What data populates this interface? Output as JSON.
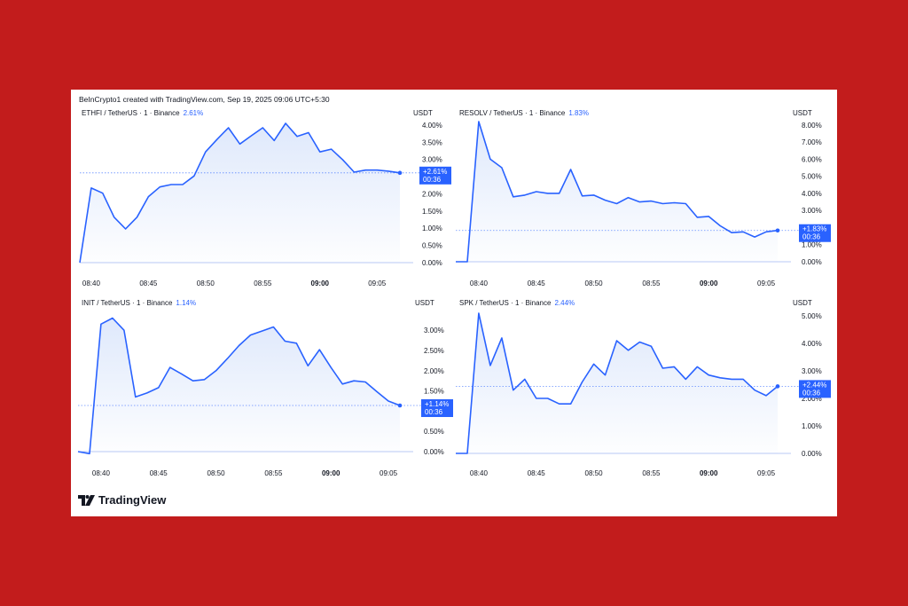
{
  "credit": "BeInCrypto1 created with TradingView.com, Sep 19, 2025 09:06 UTC+5:30",
  "brand": "TradingView",
  "colors": {
    "line": "#2962ff",
    "fill": "#dbe6fb",
    "background": "#c21c1c",
    "axis": "#131722"
  },
  "chart_data": [
    {
      "type": "area",
      "symbol": "ETHFI / TetherUS · 1 · Binance",
      "change": "2.61%",
      "unit": "USDT",
      "badge_value": "+2.61%",
      "badge_time": "00:36",
      "x_ticks": [
        "08:40",
        "08:45",
        "08:50",
        "08:55",
        "09:00",
        "09:05"
      ],
      "x_tick_index": [
        1,
        6,
        11,
        16,
        21,
        26
      ],
      "bold_tick": "09:00",
      "y_ticks": [
        "0.00%",
        "0.50%",
        "1.00%",
        "1.50%",
        "2.00%",
        "2.50%",
        "3.00%",
        "3.50%",
        "4.00%"
      ],
      "ylim": [
        0,
        4.05
      ],
      "x": [
        0,
        1,
        2,
        3,
        4,
        5,
        6,
        7,
        8,
        9,
        10,
        11,
        12,
        13,
        14,
        15,
        16,
        17,
        18,
        19,
        20,
        21,
        22,
        23,
        24,
        25,
        26,
        27,
        28
      ],
      "values": [
        0.0,
        2.17,
        2.02,
        1.32,
        0.98,
        1.32,
        1.92,
        2.2,
        2.27,
        2.27,
        2.52,
        3.22,
        3.58,
        3.92,
        3.45,
        3.69,
        3.92,
        3.55,
        4.05,
        3.67,
        3.78,
        3.22,
        3.3,
        2.99,
        2.63,
        2.69,
        2.69,
        2.66,
        2.61
      ]
    },
    {
      "type": "area",
      "symbol": "RESOLV / TetherUS · 1 · Binance",
      "change": "1.83%",
      "unit": "USDT",
      "badge_value": "+1.83%",
      "badge_time": "00:36",
      "x_ticks": [
        "08:40",
        "08:45",
        "08:50",
        "08:55",
        "09:00",
        "09:05"
      ],
      "x_tick_index": [
        2,
        7,
        12,
        17,
        22,
        27
      ],
      "bold_tick": "09:00",
      "y_ticks": [
        "0.00%",
        "1.00%",
        "2.00%",
        "3.00%",
        "4.00%",
        "5.00%",
        "6.00%",
        "7.00%",
        "8.00%"
      ],
      "ylim": [
        0,
        8.2
      ],
      "x": [
        0,
        1,
        2,
        3,
        4,
        5,
        6,
        7,
        8,
        9,
        10,
        11,
        12,
        13,
        14,
        15,
        16,
        17,
        18,
        19,
        20,
        21,
        22,
        23,
        24,
        25,
        26,
        27,
        28
      ],
      "values": [
        0.0,
        0.0,
        8.2,
        6.0,
        5.5,
        3.8,
        3.9,
        4.1,
        4.0,
        4.0,
        5.4,
        3.85,
        3.9,
        3.6,
        3.4,
        3.75,
        3.5,
        3.55,
        3.4,
        3.45,
        3.4,
        2.6,
        2.65,
        2.1,
        1.7,
        1.75,
        1.45,
        1.75,
        1.83
      ]
    },
    {
      "type": "area",
      "symbol": "INIT / TetherUS · 1 · Binance",
      "change": "1.14%",
      "unit": "USDT",
      "badge_value": "+1.14%",
      "badge_time": "00:36",
      "x_ticks": [
        "08:40",
        "08:45",
        "08:50",
        "08:55",
        "09:00",
        "09:05"
      ],
      "x_tick_index": [
        2,
        7,
        12,
        17,
        22,
        27
      ],
      "bold_tick": "09:00",
      "y_ticks": [
        "0.00%",
        "0.50%",
        "1.00%",
        "1.50%",
        "2.00%",
        "2.50%",
        "3.00%"
      ],
      "ylim": [
        0,
        3.42
      ],
      "x": [
        0,
        1,
        2,
        3,
        4,
        5,
        6,
        7,
        8,
        9,
        10,
        11,
        12,
        13,
        14,
        15,
        16,
        17,
        18,
        19,
        20,
        21,
        22,
        23,
        24,
        25,
        26,
        27,
        28
      ],
      "values": [
        0.0,
        -0.05,
        3.15,
        3.3,
        3.0,
        1.35,
        1.45,
        1.58,
        2.08,
        1.92,
        1.75,
        1.78,
        2.0,
        2.3,
        2.62,
        2.88,
        2.98,
        3.08,
        2.73,
        2.68,
        2.12,
        2.52,
        2.08,
        1.67,
        1.75,
        1.72,
        1.48,
        1.25,
        1.14
      ]
    },
    {
      "type": "area",
      "symbol": "SPK / TetherUS · 1 · Binance",
      "change": "2.44%",
      "unit": "USDT",
      "badge_value": "+2.44%",
      "badge_time": "00:36",
      "x_ticks": [
        "08:40",
        "08:45",
        "08:50",
        "08:55",
        "09:00",
        "09:05"
      ],
      "x_tick_index": [
        2,
        7,
        12,
        17,
        22,
        27
      ],
      "bold_tick": "09:00",
      "y_ticks": [
        "0.00%",
        "1.00%",
        "2.00%",
        "3.00%",
        "4.00%",
        "5.00%"
      ],
      "ylim": [
        0,
        5.1
      ],
      "x": [
        0,
        1,
        2,
        3,
        4,
        5,
        6,
        7,
        8,
        9,
        10,
        11,
        12,
        13,
        14,
        15,
        16,
        17,
        18,
        19,
        20,
        21,
        22,
        23,
        24,
        25,
        26,
        27,
        28
      ],
      "values": [
        0.0,
        0.0,
        5.1,
        3.2,
        4.2,
        2.3,
        2.7,
        2.0,
        2.0,
        1.8,
        1.8,
        2.6,
        3.25,
        2.85,
        4.1,
        3.75,
        4.05,
        3.9,
        3.1,
        3.15,
        2.7,
        3.15,
        2.85,
        2.75,
        2.7,
        2.7,
        2.3,
        2.1,
        2.44
      ]
    }
  ]
}
